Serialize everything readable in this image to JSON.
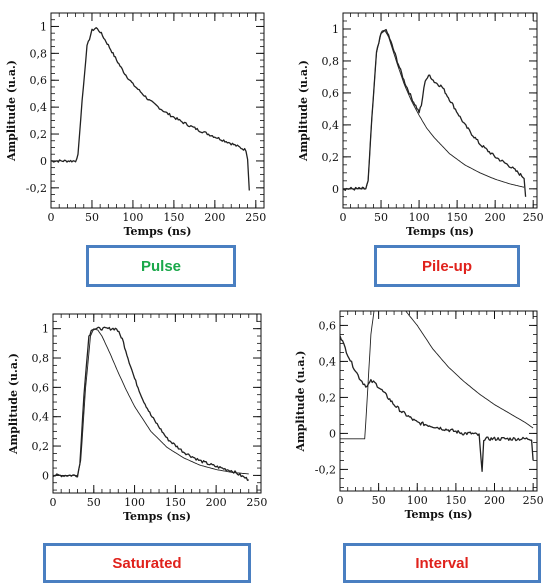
{
  "colors": {
    "box_border": "#4a7fc1",
    "green_label": "#1aa84a",
    "red_label": "#e0221c",
    "trace": "#222222"
  },
  "chart_data": [
    {
      "id": "pulse",
      "type": "line",
      "caption": "Pulse",
      "caption_color": "#1aa84a",
      "xlabel": "Temps (ns)",
      "ylabel": "Amplitude (u.a.)",
      "xlim": [
        0,
        260
      ],
      "ylim": [
        -0.35,
        1.1
      ],
      "xticks": [
        0,
        50,
        100,
        150,
        200,
        250
      ],
      "yticks": [
        -0.2,
        0,
        0.2,
        0.4,
        0.6,
        0.8,
        1
      ],
      "ytick_labels": [
        "-0,2",
        "0",
        "0,2",
        "0,4",
        "0,6",
        "0,8",
        "1"
      ],
      "series": [
        {
          "x": [
            0,
            30,
            33,
            38,
            44,
            50,
            55,
            60,
            70,
            80,
            90,
            100,
            120,
            140,
            160,
            180,
            200,
            220,
            238,
            240,
            242
          ],
          "y": [
            0,
            0,
            0.05,
            0.45,
            0.85,
            0.97,
            0.99,
            0.96,
            0.86,
            0.75,
            0.65,
            0.57,
            0.45,
            0.36,
            0.29,
            0.23,
            0.18,
            0.13,
            0.08,
            0.02,
            -0.22
          ],
          "noisy": true
        }
      ]
    },
    {
      "id": "pileup",
      "type": "line",
      "caption": "Pile-up",
      "caption_color": "#e0221c",
      "xlabel": "Temps (ns)",
      "ylabel": "Amplitude (u.a.)",
      "xlim": [
        0,
        255
      ],
      "ylim": [
        -0.12,
        1.1
      ],
      "xticks": [
        0,
        50,
        100,
        150,
        200,
        250
      ],
      "yticks": [
        0,
        0.2,
        0.4,
        0.6,
        0.8,
        1
      ],
      "ytick_labels": [
        "0",
        "0,2",
        "0,4",
        "0,6",
        "0,8",
        "1"
      ],
      "series": [
        {
          "x": [
            0,
            30,
            33,
            38,
            44,
            50,
            55,
            60,
            70,
            80,
            90,
            100,
            110,
            120,
            140,
            160,
            180,
            200,
            220,
            238
          ],
          "y": [
            0,
            0,
            0.05,
            0.45,
            0.85,
            0.97,
            0.99,
            0.95,
            0.8,
            0.66,
            0.55,
            0.46,
            0.38,
            0.32,
            0.22,
            0.15,
            0.1,
            0.06,
            0.03,
            0.01
          ],
          "noisy": false
        },
        {
          "x": [
            0,
            30,
            33,
            38,
            44,
            50,
            55,
            60,
            70,
            80,
            90,
            100,
            103,
            108,
            114,
            120,
            130,
            140,
            160,
            180,
            200,
            220,
            238,
            240
          ],
          "y": [
            0,
            0,
            0.05,
            0.45,
            0.85,
            0.97,
            1.0,
            0.96,
            0.82,
            0.68,
            0.57,
            0.48,
            0.52,
            0.68,
            0.71,
            0.67,
            0.64,
            0.56,
            0.4,
            0.28,
            0.2,
            0.14,
            0.07,
            -0.05
          ],
          "noisy": true
        }
      ]
    },
    {
      "id": "saturated",
      "type": "line",
      "caption": "Saturated",
      "caption_color": "#e0221c",
      "xlabel": "Temps (ns)",
      "ylabel": "Amplitude (u.a.)",
      "xlim": [
        0,
        255
      ],
      "ylim": [
        -0.12,
        1.1
      ],
      "xticks": [
        0,
        50,
        100,
        150,
        200,
        250
      ],
      "yticks": [
        0,
        0.2,
        0.4,
        0.6,
        0.8,
        1
      ],
      "ytick_labels": [
        "0",
        "0,2",
        "0,4",
        "0,6",
        "0,8",
        "1"
      ],
      "series": [
        {
          "x": [
            0,
            30,
            34,
            40,
            46,
            50,
            55,
            60,
            70,
            80,
            90,
            100,
            120,
            140,
            160,
            180,
            200,
            220,
            240
          ],
          "y": [
            0,
            0,
            0.1,
            0.6,
            0.95,
            1.0,
            0.99,
            0.95,
            0.83,
            0.7,
            0.58,
            0.47,
            0.3,
            0.19,
            0.12,
            0.07,
            0.04,
            0.02,
            0.01
          ],
          "noisy": false
        },
        {
          "x": [
            0,
            30,
            33,
            38,
            44,
            48,
            60,
            78,
            85,
            92,
            100,
            110,
            120,
            140,
            160,
            180,
            200,
            220,
            240
          ],
          "y": [
            0,
            0,
            0.08,
            0.55,
            0.95,
            1.0,
            1.0,
            1.0,
            0.93,
            0.8,
            0.66,
            0.52,
            0.41,
            0.25,
            0.16,
            0.1,
            0.06,
            0.03,
            -0.03
          ],
          "noisy": true
        }
      ]
    },
    {
      "id": "interval",
      "type": "line",
      "caption": "Interval",
      "caption_color": "#e0221c",
      "xlabel": "Temps (ns)",
      "ylabel": "Amplitude (u.a.)",
      "xlim": [
        0,
        255
      ],
      "ylim": [
        -0.32,
        0.68
      ],
      "xticks": [
        0,
        50,
        100,
        150,
        200,
        250
      ],
      "yticks": [
        -0.2,
        0,
        0.2,
        0.4,
        0.6
      ],
      "ytick_labels": [
        "-0,2",
        "0",
        "0,2",
        "0,4",
        "0,6"
      ],
      "series": [
        {
          "x": [
            0,
            5,
            10,
            15,
            20,
            25,
            30,
            35,
            40,
            45,
            50,
            60,
            70,
            80,
            90,
            100,
            110,
            120,
            130,
            140,
            150,
            160,
            170,
            180,
            184,
            186,
            190,
            200,
            220,
            240,
            248,
            250
          ],
          "y": [
            0.55,
            0.49,
            0.44,
            0.39,
            0.35,
            0.31,
            0.28,
            0.26,
            0.29,
            0.28,
            0.26,
            0.21,
            0.16,
            0.12,
            0.09,
            0.06,
            0.05,
            0.04,
            0.03,
            0.02,
            0.01,
            0.0,
            0.0,
            -0.01,
            -0.22,
            -0.03,
            -0.03,
            -0.03,
            -0.03,
            -0.03,
            -0.03,
            -0.15
          ],
          "noisy": true
        },
        {
          "x": [
            0,
            20,
            28,
            32,
            36,
            40,
            44,
            48,
            70,
            85,
            100,
            120,
            140,
            160,
            180,
            200,
            220,
            240,
            250
          ],
          "y": [
            -0.03,
            -0.03,
            -0.03,
            -0.03,
            0.25,
            0.55,
            0.68,
            0.68,
            0.68,
            0.68,
            0.6,
            0.47,
            0.37,
            0.29,
            0.22,
            0.16,
            0.11,
            0.06,
            0.03
          ],
          "noisy": false
        }
      ]
    }
  ]
}
